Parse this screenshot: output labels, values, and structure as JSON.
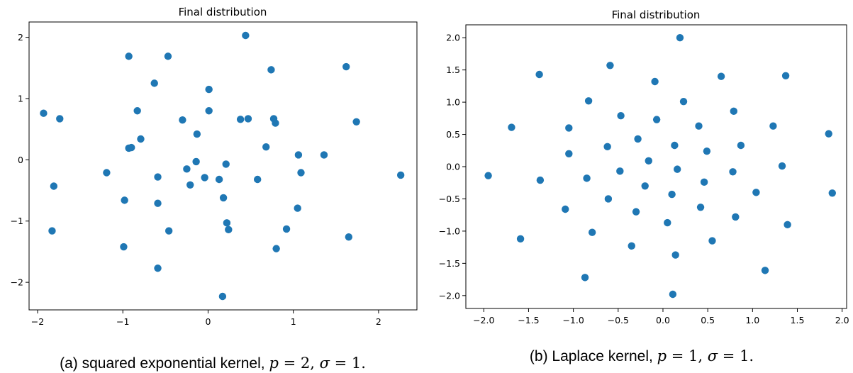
{
  "chart_data": [
    {
      "type": "scatter",
      "title": "Final distribution",
      "caption": {
        "prefix": "(a) squared exponential kernel, ",
        "p_sym": "p",
        "p_eq": " = 2",
        "sigma_sym": "σ",
        "sigma_eq": " = 1."
      },
      "xlim": [
        -2.1,
        2.45
      ],
      "ylim": [
        -2.45,
        2.25
      ],
      "xticks": [
        -2,
        -1,
        0,
        1,
        2
      ],
      "yticks": [
        -2,
        -1,
        0,
        1,
        2
      ],
      "color": "#1f77b4",
      "points": [
        [
          -1.93,
          0.76
        ],
        [
          -1.74,
          0.67
        ],
        [
          -1.81,
          -0.43
        ],
        [
          -1.83,
          -1.16
        ],
        [
          -1.19,
          -0.21
        ],
        [
          -0.98,
          -0.66
        ],
        [
          -0.99,
          -1.42
        ],
        [
          -0.93,
          1.69
        ],
        [
          -0.93,
          0.19
        ],
        [
          -0.9,
          0.2
        ],
        [
          -0.83,
          0.8
        ],
        [
          -0.79,
          0.34
        ],
        [
          -0.63,
          1.25
        ],
        [
          -0.59,
          -0.28
        ],
        [
          -0.59,
          -0.71
        ],
        [
          -0.59,
          -1.77
        ],
        [
          -0.47,
          1.69
        ],
        [
          -0.46,
          -1.16
        ],
        [
          -0.3,
          0.65
        ],
        [
          -0.25,
          -0.15
        ],
        [
          -0.21,
          -0.41
        ],
        [
          -0.14,
          -0.03
        ],
        [
          -0.13,
          0.42
        ],
        [
          -0.04,
          -0.29
        ],
        [
          0.01,
          1.15
        ],
        [
          0.01,
          0.8
        ],
        [
          0.13,
          -0.32
        ],
        [
          0.18,
          -0.62
        ],
        [
          0.17,
          -2.23
        ],
        [
          0.21,
          -0.07
        ],
        [
          0.22,
          -1.03
        ],
        [
          0.24,
          -1.14
        ],
        [
          0.38,
          0.66
        ],
        [
          0.44,
          2.03
        ],
        [
          0.47,
          0.67
        ],
        [
          0.58,
          -0.32
        ],
        [
          0.68,
          0.21
        ],
        [
          0.74,
          1.47
        ],
        [
          0.77,
          0.67
        ],
        [
          0.79,
          0.6
        ],
        [
          0.8,
          -1.45
        ],
        [
          0.92,
          -1.13
        ],
        [
          1.05,
          -0.79
        ],
        [
          1.06,
          0.08
        ],
        [
          1.09,
          -0.21
        ],
        [
          1.36,
          0.08
        ],
        [
          1.62,
          1.52
        ],
        [
          1.65,
          -1.26
        ],
        [
          1.74,
          0.62
        ],
        [
          2.26,
          -0.25
        ]
      ]
    },
    {
      "type": "scatter",
      "title": "Final distribution",
      "caption": {
        "prefix": "(b) Laplace kernel, ",
        "p_sym": "p",
        "p_eq": " = 1",
        "sigma_sym": "σ",
        "sigma_eq": " = 1."
      },
      "xlim": [
        -2.2,
        2.05
      ],
      "ylim": [
        -2.2,
        2.2
      ],
      "xticks": [
        -2.0,
        -1.5,
        -1.0,
        -0.5,
        0.0,
        0.5,
        1.0,
        1.5,
        2.0
      ],
      "xtick_labels": [
        "−2.0",
        "−1.5",
        "−1.0",
        "−0.5",
        "0.0",
        "0.5",
        "1.0",
        "1.5",
        "2.0"
      ],
      "yticks": [
        -2.0,
        -1.5,
        -1.0,
        -0.5,
        0.0,
        0.5,
        1.0,
        1.5,
        2.0
      ],
      "ytick_labels": [
        "−2.0",
        "−1.5",
        "−1.0",
        "−0.5",
        "0.0",
        "0.5",
        "1.0",
        "1.5",
        "2.0"
      ],
      "color": "#1f77b4",
      "points": [
        [
          -1.95,
          -0.14
        ],
        [
          -1.69,
          0.61
        ],
        [
          -1.59,
          -1.12
        ],
        [
          -1.38,
          1.43
        ],
        [
          -1.37,
          -0.21
        ],
        [
          -1.09,
          -0.66
        ],
        [
          -1.05,
          0.6
        ],
        [
          -1.05,
          0.2
        ],
        [
          -0.85,
          -0.18
        ],
        [
          -0.87,
          -1.72
        ],
        [
          -0.83,
          1.02
        ],
        [
          -0.79,
          -1.02
        ],
        [
          -0.62,
          0.31
        ],
        [
          -0.61,
          -0.5
        ],
        [
          -0.59,
          1.57
        ],
        [
          -0.48,
          -0.07
        ],
        [
          -0.47,
          0.79
        ],
        [
          -0.35,
          -1.23
        ],
        [
          -0.3,
          -0.7
        ],
        [
          -0.28,
          0.43
        ],
        [
          -0.2,
          -0.3
        ],
        [
          -0.16,
          0.09
        ],
        [
          -0.09,
          1.32
        ],
        [
          -0.07,
          0.73
        ],
        [
          0.05,
          -0.87
        ],
        [
          0.1,
          -0.43
        ],
        [
          0.11,
          -1.98
        ],
        [
          0.13,
          0.33
        ],
        [
          0.14,
          -1.37
        ],
        [
          0.16,
          -0.04
        ],
        [
          0.19,
          2.0
        ],
        [
          0.23,
          1.01
        ],
        [
          0.4,
          0.63
        ],
        [
          0.42,
          -0.63
        ],
        [
          0.46,
          -0.24
        ],
        [
          0.49,
          0.24
        ],
        [
          0.55,
          -1.15
        ],
        [
          0.65,
          1.4
        ],
        [
          0.78,
          -0.08
        ],
        [
          0.79,
          0.86
        ],
        [
          0.81,
          -0.78
        ],
        [
          0.87,
          0.33
        ],
        [
          1.04,
          -0.4
        ],
        [
          1.23,
          0.63
        ],
        [
          1.14,
          -1.61
        ],
        [
          1.33,
          0.01
        ],
        [
          1.37,
          1.41
        ],
        [
          1.39,
          -0.9
        ],
        [
          1.85,
          0.51
        ],
        [
          1.89,
          -0.41
        ]
      ]
    }
  ]
}
